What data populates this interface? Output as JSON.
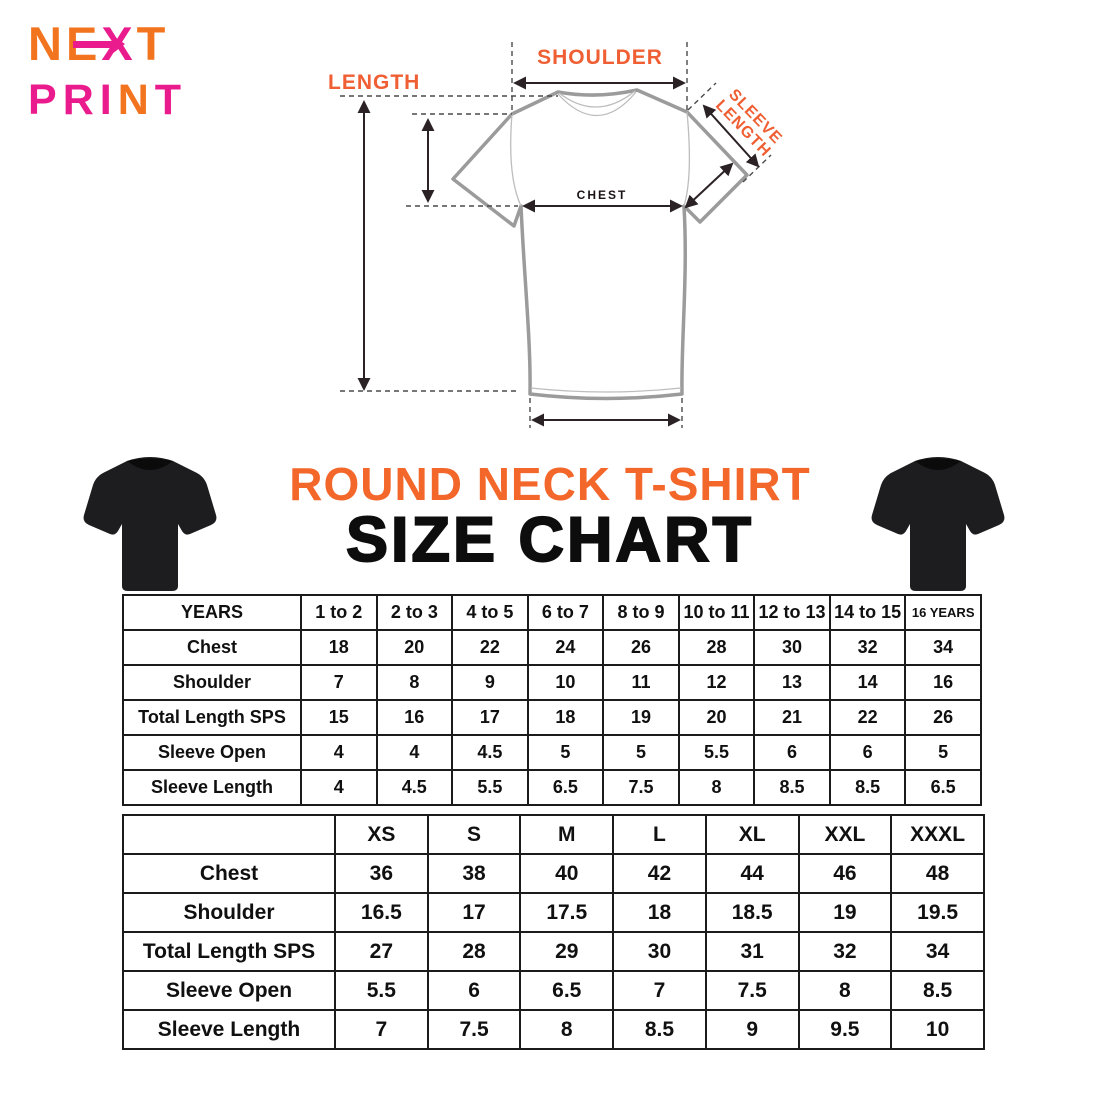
{
  "colors": {
    "orange": "#F2741E",
    "magenta": "#EA1C8D",
    "heading_orange": "#F4672B",
    "diagram_orange": "#EF5F33",
    "shirt_outline_gray": "#9b9b9b",
    "table_border": "#1b1b1b"
  },
  "logo": {
    "word1_letters": [
      "N",
      "E",
      "X",
      "T"
    ],
    "word2_letters": [
      "P",
      "R",
      "I",
      "N",
      "T"
    ]
  },
  "diagram": {
    "length_label": "LENGTH",
    "shoulder_label": "SHOULDER",
    "sleeve_label_line1": "SLEEVE",
    "sleeve_label_line2": "LENGTH",
    "chest_label": "CHEST"
  },
  "headings": {
    "product_title": "ROUND NECK T-SHIRT",
    "chart_title": "SIZE CHART"
  },
  "chart_data": [
    {
      "type": "table",
      "name": "kids_sizes_by_years",
      "columns": [
        "YEARS",
        "1 to 2",
        "2 to 3",
        "4 to 5",
        "6 to 7",
        "8 to 9",
        "10 to 11",
        "12 to 13",
        "14 to 15",
        "16 YEARS"
      ],
      "rows": [
        {
          "label": "Chest",
          "values": [
            "18",
            "20",
            "22",
            "24",
            "26",
            "28",
            "30",
            "32",
            "34"
          ]
        },
        {
          "label": "Shoulder",
          "values": [
            "7",
            "8",
            "9",
            "10",
            "11",
            "12",
            "13",
            "14",
            "16"
          ]
        },
        {
          "label": "Total Length SPS",
          "values": [
            "15",
            "16",
            "17",
            "18",
            "19",
            "20",
            "21",
            "22",
            "26"
          ]
        },
        {
          "label": "Sleeve Open",
          "values": [
            "4",
            "4",
            "4.5",
            "5",
            "5",
            "5.5",
            "6",
            "6",
            "5"
          ]
        },
        {
          "label": "Sleeve Length",
          "values": [
            "4",
            "4.5",
            "5.5",
            "6.5",
            "7.5",
            "8",
            "8.5",
            "8.5",
            "6.5"
          ]
        }
      ]
    },
    {
      "type": "table",
      "name": "adult_sizes",
      "columns": [
        "",
        "XS",
        "S",
        "M",
        "L",
        "XL",
        "XXL",
        "XXXL"
      ],
      "rows": [
        {
          "label": "Chest",
          "values": [
            "36",
            "38",
            "40",
            "42",
            "44",
            "46",
            "48"
          ]
        },
        {
          "label": "Shoulder",
          "values": [
            "16.5",
            "17",
            "17.5",
            "18",
            "18.5",
            "19",
            "19.5"
          ]
        },
        {
          "label": "Total Length SPS",
          "values": [
            "27",
            "28",
            "29",
            "30",
            "31",
            "32",
            "34"
          ]
        },
        {
          "label": "Sleeve Open",
          "values": [
            "5.5",
            "6",
            "6.5",
            "7",
            "7.5",
            "8",
            "8.5"
          ]
        },
        {
          "label": "Sleeve Length",
          "values": [
            "7",
            "7.5",
            "8",
            "8.5",
            "9",
            "9.5",
            "10"
          ]
        }
      ]
    }
  ]
}
